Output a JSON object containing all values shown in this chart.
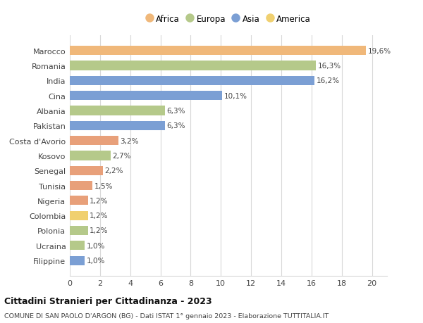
{
  "categories": [
    "Filippine",
    "Ucraina",
    "Polonia",
    "Colombia",
    "Nigeria",
    "Tunisia",
    "Senegal",
    "Kosovo",
    "Costa d'Avorio",
    "Pakistan",
    "Albania",
    "Cina",
    "India",
    "Romania",
    "Marocco"
  ],
  "values": [
    1.0,
    1.0,
    1.2,
    1.2,
    1.2,
    1.5,
    2.2,
    2.7,
    3.2,
    6.3,
    6.3,
    10.1,
    16.2,
    16.3,
    19.6
  ],
  "labels": [
    "1,0%",
    "1,0%",
    "1,2%",
    "1,2%",
    "1,2%",
    "1,5%",
    "2,2%",
    "2,7%",
    "3,2%",
    "6,3%",
    "6,3%",
    "10,1%",
    "16,2%",
    "16,3%",
    "19,6%"
  ],
  "colors": [
    "#7b9fd4",
    "#b5c98a",
    "#b5c98a",
    "#f0d070",
    "#e8a07a",
    "#e8a07a",
    "#e8a07a",
    "#b5c98a",
    "#e8a07a",
    "#7b9fd4",
    "#b5c98a",
    "#7b9fd4",
    "#7b9fd4",
    "#b5c98a",
    "#f0b87a"
  ],
  "africa_color": "#f0b87a",
  "europa_color": "#b5c98a",
  "asia_color": "#7b9fd4",
  "america_color": "#f0d070",
  "legend": [
    {
      "label": "Africa",
      "color": "#f0b87a"
    },
    {
      "label": "Europa",
      "color": "#b5c98a"
    },
    {
      "label": "Asia",
      "color": "#7b9fd4"
    },
    {
      "label": "America",
      "color": "#f0d070"
    }
  ],
  "xlim": [
    0,
    21
  ],
  "xticks": [
    0,
    2,
    4,
    6,
    8,
    10,
    12,
    14,
    16,
    18,
    20
  ],
  "title": "Cittadini Stranieri per Cittadinanza - 2023",
  "subtitle": "COMUNE DI SAN PAOLO D'ARGON (BG) - Dati ISTAT 1° gennaio 2023 - Elaborazione TUTTITALIA.IT",
  "bg_color": "#ffffff",
  "bar_height": 0.62,
  "grid_color": "#d8d8d8"
}
